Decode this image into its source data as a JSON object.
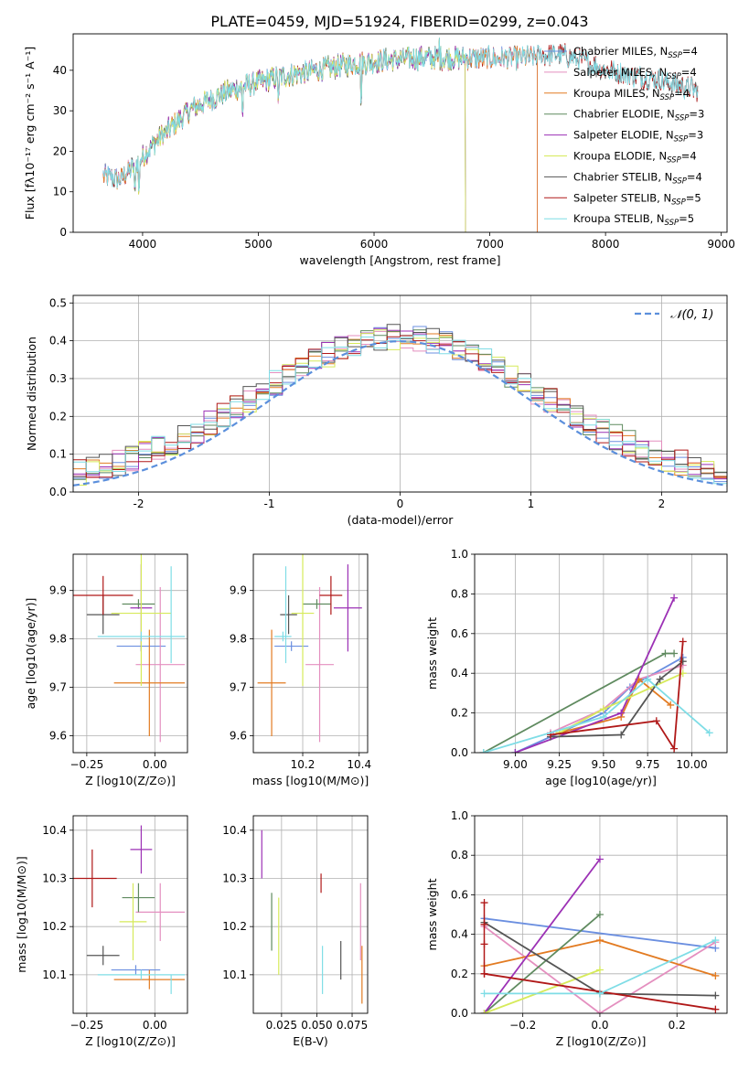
{
  "title": "PLATE=0459, MJD=51924, FIBERID=0299, z=0.043",
  "colors": {
    "chabrier_miles": "#6b8fe0",
    "salpeter_miles": "#e48fbf",
    "kroupa_miles": "#e27b22",
    "chabrier_elodie": "#5f8a5f",
    "salpeter_elodie": "#9c31b5",
    "kroupa_elodie": "#d6ea5a",
    "chabrier_stelib": "#555555",
    "salpeter_stelib": "#b01818",
    "kroupa_stelib": "#7fdde6",
    "gauss": "#5b8fdc"
  },
  "chart_data": [
    {
      "id": "spectrum",
      "type": "line",
      "title": "PLATE=0459, MJD=51924, FIBERID=0299, z=0.043",
      "xlabel": "wavelength [Angstrom, rest frame]",
      "ylabel": "Flux [fλ10⁻¹⁷ erg cm⁻² s⁻¹ A⁻¹]",
      "xlim": [
        3400,
        9050
      ],
      "ylim": [
        0,
        49
      ],
      "xticks": [
        4000,
        5000,
        6000,
        7000,
        8000,
        9000
      ],
      "yticks": [
        0,
        10,
        20,
        30,
        40
      ],
      "grid": false,
      "legend_position": "top-right",
      "legend": [
        {
          "key": "chabrier_miles",
          "label": "Chabrier MILES, N",
          "sub": "SSP",
          "tail": "=4"
        },
        {
          "key": "salpeter_miles",
          "label": "Salpeter MILES, N",
          "sub": "SSP",
          "tail": "=4"
        },
        {
          "key": "kroupa_miles",
          "label": "Kroupa MILES, N",
          "sub": "SSP",
          "tail": "=4"
        },
        {
          "key": "chabrier_elodie",
          "label": "Chabrier ELODIE, N",
          "sub": "SSP",
          "tail": "=3"
        },
        {
          "key": "salpeter_elodie",
          "label": "Salpeter ELODIE, N",
          "sub": "SSP",
          "tail": "=3"
        },
        {
          "key": "kroupa_elodie",
          "label": "Kroupa ELODIE, N",
          "sub": "SSP",
          "tail": "=4"
        },
        {
          "key": "chabrier_stelib",
          "label": "Chabrier STELIB, N",
          "sub": "SSP",
          "tail": "=4"
        },
        {
          "key": "salpeter_stelib",
          "label": "Salpeter STELIB, N",
          "sub": "SSP",
          "tail": "=5"
        },
        {
          "key": "kroupa_stelib",
          "label": "Kroupa STELIB, N",
          "sub": "SSP",
          "tail": "=5"
        }
      ],
      "continuum": [
        [
          3660,
          14
        ],
        [
          3800,
          13
        ],
        [
          3950,
          17
        ],
        [
          4100,
          22
        ],
        [
          4250,
          26
        ],
        [
          4400,
          30
        ],
        [
          4600,
          33
        ],
        [
          4800,
          35.5
        ],
        [
          5000,
          37
        ],
        [
          5200,
          38.5
        ],
        [
          5500,
          40
        ],
        [
          5800,
          41.5
        ],
        [
          6100,
          42.5
        ],
        [
          6400,
          43
        ],
        [
          6800,
          43
        ],
        [
          7200,
          43
        ],
        [
          7600,
          44
        ],
        [
          7800,
          42.5
        ],
        [
          8000,
          40
        ],
        [
          8200,
          39
        ],
        [
          8400,
          38
        ],
        [
          8600,
          36.5
        ],
        [
          8800,
          35
        ]
      ],
      "spectrum_sample": {
        "xmin": 3660,
        "xmax": 8800,
        "step": 6
      },
      "spectrum_coverage": {
        "chabrier_miles": [
          3660,
          7410
        ],
        "salpeter_miles": [
          3660,
          7410
        ],
        "kroupa_miles": [
          3660,
          7410
        ],
        "chabrier_elodie": [
          3900,
          6790
        ],
        "salpeter_elodie": [
          3900,
          6790
        ],
        "kroupa_elodie": [
          3900,
          6790
        ],
        "chabrier_stelib": [
          3660,
          8800
        ],
        "salpeter_stelib": [
          3660,
          8800
        ],
        "kroupa_stelib": [
          3660,
          8800
        ]
      }
    },
    {
      "id": "residuals",
      "type": "area",
      "xlabel": "(data-model)/error",
      "ylabel": "Normed distribution",
      "xlim": [
        -2.5,
        2.5
      ],
      "ylim": [
        0,
        0.52
      ],
      "xticks": [
        -2,
        -1,
        0,
        1,
        2
      ],
      "yticks": [
        0.0,
        0.1,
        0.2,
        0.3,
        0.4,
        0.5
      ],
      "grid": true,
      "legend_position": "top-right",
      "gauss_label": "𝒩(0, 1)",
      "bins": {
        "start": -2.5,
        "width": 0.1,
        "count": 50
      }
    },
    {
      "id": "age_vs_z",
      "type": "scatter",
      "xlabel": "Z [log10(Z/Z⊙)]",
      "ylabel": "age  [log10(age/yr)]",
      "xlim": [
        -0.3,
        0.12
      ],
      "ylim": [
        9.565,
        9.975
      ],
      "xticks": [
        -0.25,
        0.0
      ],
      "xticklabels": [
        "−0.25",
        "0.00"
      ],
      "yticks": [
        9.6,
        9.7,
        9.8,
        9.9
      ],
      "yticklabels": [
        "9.6",
        "9.7",
        "9.8",
        "9.9"
      ],
      "grid": true,
      "points": [
        {
          "key": "chabrier_miles",
          "x": -0.05,
          "xerr": 0.09,
          "y": 9.785,
          "yerr": 0.01
        },
        {
          "key": "salpeter_miles",
          "x": 0.02,
          "xerr": 0.09,
          "y": 9.747,
          "yerr": 0.16
        },
        {
          "key": "kroupa_miles",
          "x": -0.02,
          "xerr": 0.13,
          "y": 9.709,
          "yerr": 0.11
        },
        {
          "key": "chabrier_elodie",
          "x": -0.06,
          "xerr": 0.06,
          "y": 9.872,
          "yerr": 0.01
        },
        {
          "key": "salpeter_elodie",
          "x": -0.05,
          "xerr": 0.04,
          "y": 9.864,
          "yerr": 0.09
        },
        {
          "key": "kroupa_elodie",
          "x": -0.05,
          "xerr": 0.11,
          "y": 9.853,
          "yerr": 0.15
        },
        {
          "key": "chabrier_stelib",
          "x": -0.19,
          "xerr": 0.06,
          "y": 9.85,
          "yerr": 0.04
        },
        {
          "key": "salpeter_stelib",
          "x": -0.19,
          "xerr": 0.11,
          "y": 9.89,
          "yerr": 0.04
        },
        {
          "key": "kroupa_stelib",
          "x": -0.05,
          "xerr": 0.16,
          "y": 9.805,
          "yerr": 0.01
        },
        {
          "key": "kroupa_stelib",
          "x": 0.06,
          "xerr": 0.0,
          "y": 9.85,
          "yerr": 0.1
        }
      ]
    },
    {
      "id": "age_vs_mass",
      "type": "scatter",
      "xlabel": "mass [log10(M/M⊙)]",
      "ylabel": "",
      "xlim": [
        10.025,
        10.43
      ],
      "ylim": [
        9.565,
        9.975
      ],
      "xticks": [
        10.2,
        10.4
      ],
      "xticklabels": [
        "10.2",
        "10.4"
      ],
      "yticks": [
        9.6,
        9.7,
        9.8,
        9.9
      ],
      "yticklabels": [
        "9.6",
        "9.7",
        "9.8",
        "9.9"
      ],
      "grid": true,
      "points": [
        {
          "key": "chabrier_miles",
          "x": 10.16,
          "xerr": 0.06,
          "y": 9.785,
          "yerr": 0.01
        },
        {
          "key": "salpeter_miles",
          "x": 10.26,
          "xerr": 0.05,
          "y": 9.747,
          "yerr": 0.16
        },
        {
          "key": "kroupa_miles",
          "x": 10.09,
          "xerr": 0.05,
          "y": 9.709,
          "yerr": 0.11
        },
        {
          "key": "chabrier_elodie",
          "x": 10.25,
          "xerr": 0.05,
          "y": 9.872,
          "yerr": 0.01
        },
        {
          "key": "salpeter_elodie",
          "x": 10.36,
          "xerr": 0.05,
          "y": 9.864,
          "yerr": 0.09
        },
        {
          "key": "kroupa_elodie",
          "x": 10.2,
          "xerr": 0.04,
          "y": 9.853,
          "yerr": 0.15
        },
        {
          "key": "chabrier_stelib",
          "x": 10.15,
          "xerr": 0.03,
          "y": 9.85,
          "yerr": 0.04
        },
        {
          "key": "salpeter_stelib",
          "x": 10.3,
          "xerr": 0.04,
          "y": 9.89,
          "yerr": 0.04
        },
        {
          "key": "kroupa_stelib",
          "x": 10.13,
          "xerr": 0.03,
          "y": 9.805,
          "yerr": 0.01
        },
        {
          "key": "kroupa_stelib",
          "x": 10.14,
          "xerr": 0.0,
          "y": 9.85,
          "yerr": 0.1
        }
      ]
    },
    {
      "id": "weight_vs_age",
      "type": "line",
      "xlabel": "age  [log10(age/yr)]",
      "ylabel": "mass weight",
      "xlim": [
        8.77,
        10.2
      ],
      "ylim": [
        0.0,
        1.0
      ],
      "xticks": [
        9.0,
        9.25,
        9.5,
        9.75,
        10.0
      ],
      "xticklabels": [
        "9.00",
        "9.25",
        "9.50",
        "9.75",
        "10.00"
      ],
      "yticks": [
        0.0,
        0.2,
        0.4,
        0.6,
        0.8,
        1.0
      ],
      "yticklabels": [
        "0.0",
        "0.2",
        "0.4",
        "0.6",
        "0.8",
        "1.0"
      ],
      "grid": true,
      "series": [
        {
          "key": "chabrier_miles",
          "x": [
            9.0,
            9.5,
            9.65,
            9.95
          ],
          "y": [
            0.0,
            0.2,
            0.33,
            0.48
          ]
        },
        {
          "key": "salpeter_miles",
          "x": [
            9.2,
            9.5,
            9.7,
            9.95
          ],
          "y": [
            0.1,
            0.22,
            0.37,
            0.44
          ]
        },
        {
          "key": "kroupa_miles",
          "x": [
            9.25,
            9.6,
            9.7,
            9.88
          ],
          "y": [
            0.1,
            0.18,
            0.37,
            0.24
          ]
        },
        {
          "key": "chabrier_elodie",
          "x": [
            8.82,
            9.85,
            9.9
          ],
          "y": [
            0.0,
            0.5,
            0.5
          ]
        },
        {
          "key": "salpeter_elodie",
          "x": [
            9.0,
            9.6,
            9.9
          ],
          "y": [
            0.0,
            0.2,
            0.78
          ]
        },
        {
          "key": "kroupa_elodie",
          "x": [
            9.25,
            9.5,
            9.95
          ],
          "y": [
            0.1,
            0.22,
            0.4
          ]
        },
        {
          "key": "chabrier_stelib",
          "x": [
            9.2,
            9.6,
            9.82,
            9.95
          ],
          "y": [
            0.08,
            0.09,
            0.37,
            0.46
          ]
        },
        {
          "key": "salpeter_stelib",
          "x": [
            9.2,
            9.8,
            9.9,
            9.95
          ],
          "y": [
            0.09,
            0.16,
            0.02,
            0.56
          ]
        },
        {
          "key": "kroupa_stelib",
          "x": [
            8.82,
            9.5,
            9.75,
            10.1
          ],
          "y": [
            0.0,
            0.18,
            0.37,
            0.1
          ]
        }
      ]
    },
    {
      "id": "mass_vs_z",
      "type": "scatter",
      "xlabel": "Z [log10(Z/Z⊙)]",
      "ylabel": "mass [log10(M/M⊙)]",
      "xlim": [
        -0.3,
        0.12
      ],
      "ylim": [
        10.02,
        10.43
      ],
      "xticks": [
        -0.25,
        0.0
      ],
      "xticklabels": [
        "−0.25",
        "0.00"
      ],
      "yticks": [
        10.1,
        10.2,
        10.3,
        10.4
      ],
      "yticklabels": [
        "10.1",
        "10.2",
        "10.3",
        "10.4"
      ],
      "grid": true,
      "points": [
        {
          "key": "chabrier_miles",
          "x": -0.07,
          "xerr": 0.09,
          "y": 10.11,
          "yerr": 0.01
        },
        {
          "key": "salpeter_miles",
          "x": 0.02,
          "xerr": 0.09,
          "y": 10.23,
          "yerr": 0.06
        },
        {
          "key": "kroupa_miles",
          "x": -0.02,
          "xerr": 0.13,
          "y": 10.09,
          "yerr": 0.02
        },
        {
          "key": "chabrier_elodie",
          "x": -0.06,
          "xerr": 0.06,
          "y": 10.26,
          "yerr": 0.03
        },
        {
          "key": "salpeter_elodie",
          "x": -0.05,
          "xerr": 0.04,
          "y": 10.36,
          "yerr": 0.05
        },
        {
          "key": "kroupa_elodie",
          "x": -0.08,
          "xerr": 0.05,
          "y": 10.21,
          "yerr": 0.08
        },
        {
          "key": "chabrier_stelib",
          "x": -0.19,
          "xerr": 0.06,
          "y": 10.14,
          "yerr": 0.02
        },
        {
          "key": "salpeter_stelib",
          "x": -0.23,
          "xerr": 0.09,
          "y": 10.3,
          "yerr": 0.06
        },
        {
          "key": "kroupa_stelib",
          "x": -0.05,
          "xerr": 0.16,
          "y": 10.1,
          "yerr": 0.01
        },
        {
          "key": "kroupa_stelib",
          "x": 0.06,
          "xerr": 0.0,
          "y": 10.08,
          "yerr": 0.02
        }
      ]
    },
    {
      "id": "mass_vs_ebv",
      "type": "scatter",
      "xlabel": "E(B-V)",
      "ylabel": "",
      "xlim": [
        0.005,
        0.086
      ],
      "ylim": [
        10.02,
        10.43
      ],
      "xticks": [
        0.025,
        0.05,
        0.075
      ],
      "xticklabels": [
        "0.025",
        "0.050",
        "0.075"
      ],
      "yticks": [
        10.1,
        10.2,
        10.3,
        10.4
      ],
      "yticklabels": [
        "10.1",
        "10.2",
        "10.3",
        "10.4"
      ],
      "grid": true,
      "points": [
        {
          "key": "salpeter_elodie",
          "x": 0.011,
          "xerr": 0,
          "y": 10.35,
          "yerr": 0.05
        },
        {
          "key": "chabrier_elodie",
          "x": 0.018,
          "xerr": 0,
          "y": 10.21,
          "yerr": 0.06
        },
        {
          "key": "kroupa_elodie",
          "x": 0.023,
          "xerr": 0,
          "y": 10.18,
          "yerr": 0.08
        },
        {
          "key": "salpeter_stelib",
          "x": 0.053,
          "xerr": 0,
          "y": 10.29,
          "yerr": 0.02
        },
        {
          "key": "kroupa_stelib",
          "x": 0.054,
          "xerr": 0,
          "y": 10.11,
          "yerr": 0.05
        },
        {
          "key": "chabrier_stelib",
          "x": 0.067,
          "xerr": 0,
          "y": 10.13,
          "yerr": 0.04
        },
        {
          "key": "salpeter_miles",
          "x": 0.081,
          "xerr": 0,
          "y": 10.21,
          "yerr": 0.08
        },
        {
          "key": "kroupa_miles",
          "x": 0.082,
          "xerr": 0,
          "y": 10.1,
          "yerr": 0.06
        }
      ]
    },
    {
      "id": "weight_vs_z",
      "type": "line",
      "xlabel": "Z [log10(Z/Z⊙)]",
      "ylabel": "mass weight",
      "xlim": [
        -0.325,
        0.33
      ],
      "ylim": [
        0.0,
        1.0
      ],
      "xticks": [
        -0.2,
        0.0,
        0.2
      ],
      "xticklabels": [
        "−0.2",
        "0.0",
        "0.2"
      ],
      "yticks": [
        0.0,
        0.2,
        0.4,
        0.6,
        0.8,
        1.0
      ],
      "yticklabels": [
        "0.0",
        "0.2",
        "0.4",
        "0.6",
        "0.8",
        "1.0"
      ],
      "grid": true,
      "series": [
        {
          "key": "chabrier_miles",
          "x": [
            -0.3,
            0.3
          ],
          "y": [
            0.48,
            0.33
          ]
        },
        {
          "key": "salpeter_miles",
          "x": [
            -0.3,
            0.0,
            0.3
          ],
          "y": [
            0.44,
            0.0,
            0.36
          ]
        },
        {
          "key": "kroupa_miles",
          "x": [
            -0.3,
            0.0,
            0.3
          ],
          "y": [
            0.24,
            0.37,
            0.19
          ]
        },
        {
          "key": "chabrier_elodie",
          "x": [
            -0.3,
            0.0
          ],
          "y": [
            0.0,
            0.5
          ]
        },
        {
          "key": "salpeter_elodie",
          "x": [
            -0.3,
            0.0
          ],
          "y": [
            0.0,
            0.78
          ]
        },
        {
          "key": "kroupa_elodie",
          "x": [
            -0.3,
            0.0
          ],
          "y": [
            0.0,
            0.22
          ]
        },
        {
          "key": "chabrier_stelib",
          "x": [
            -0.3,
            0.0,
            0.3
          ],
          "y": [
            0.46,
            0.1,
            0.09
          ]
        },
        {
          "key": "salpeter_stelib",
          "x": [
            -0.3,
            0.3
          ],
          "y": [
            0.2,
            0.02
          ]
        },
        {
          "key": "kroupa_stelib",
          "x": [
            -0.3,
            0.0,
            0.3
          ],
          "y": [
            0.1,
            0.1,
            0.37
          ]
        }
      ],
      "extra_markers": {
        "key": "salpeter_stelib",
        "x": -0.3,
        "y": [
          0.56,
          0.45,
          0.35,
          0.2
        ]
      }
    }
  ]
}
